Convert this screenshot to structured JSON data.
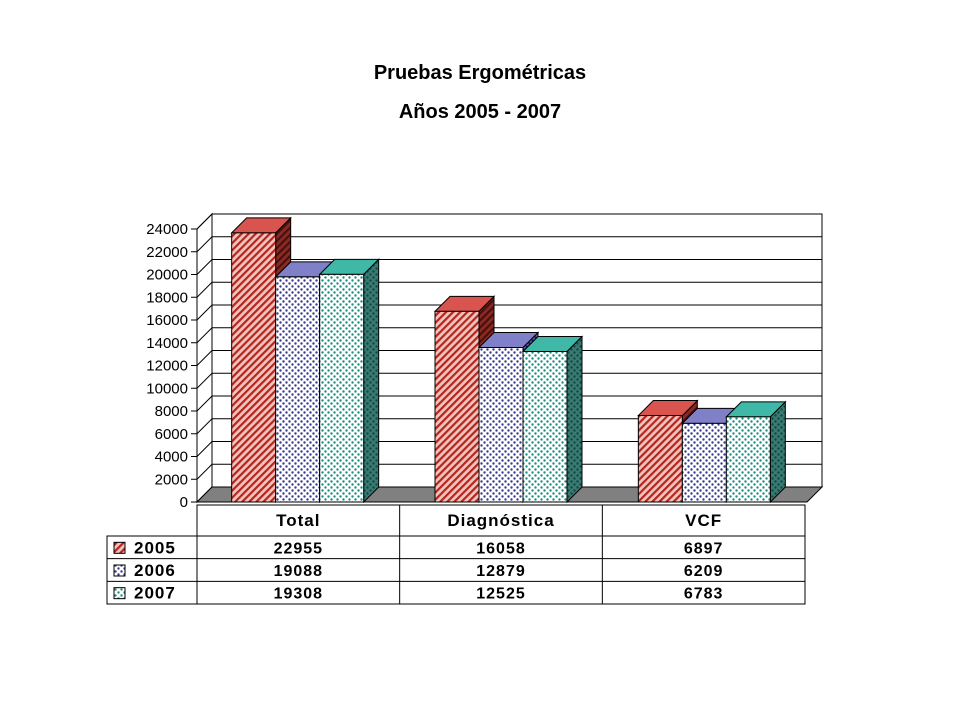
{
  "chart_data": {
    "type": "bar",
    "title": "Pruebas Ergométricas",
    "subtitle": "Años 2005 - 2007",
    "categories": [
      "Total",
      "Diagnóstica",
      "VCF"
    ],
    "series": [
      {
        "name": "2005",
        "values": [
          22955,
          16058,
          6897
        ],
        "color": "#d9534f",
        "pattern": "diagonal-hatch"
      },
      {
        "name": "2006",
        "values": [
          19088,
          12879,
          6209
        ],
        "color": "#8080c8",
        "pattern": "dots"
      },
      {
        "name": "2007",
        "values": [
          19308,
          12525,
          6783
        ],
        "color": "#3fb8a8",
        "pattern": "dots"
      }
    ],
    "ylim": [
      0,
      24000
    ],
    "yticks": [
      0,
      2000,
      4000,
      6000,
      8000,
      10000,
      12000,
      14000,
      16000,
      18000,
      20000,
      22000,
      24000
    ],
    "grid": true,
    "data_table": true
  },
  "colors": {
    "floor": "#808080",
    "wall": "#ffffff",
    "gridline": "#000000"
  }
}
